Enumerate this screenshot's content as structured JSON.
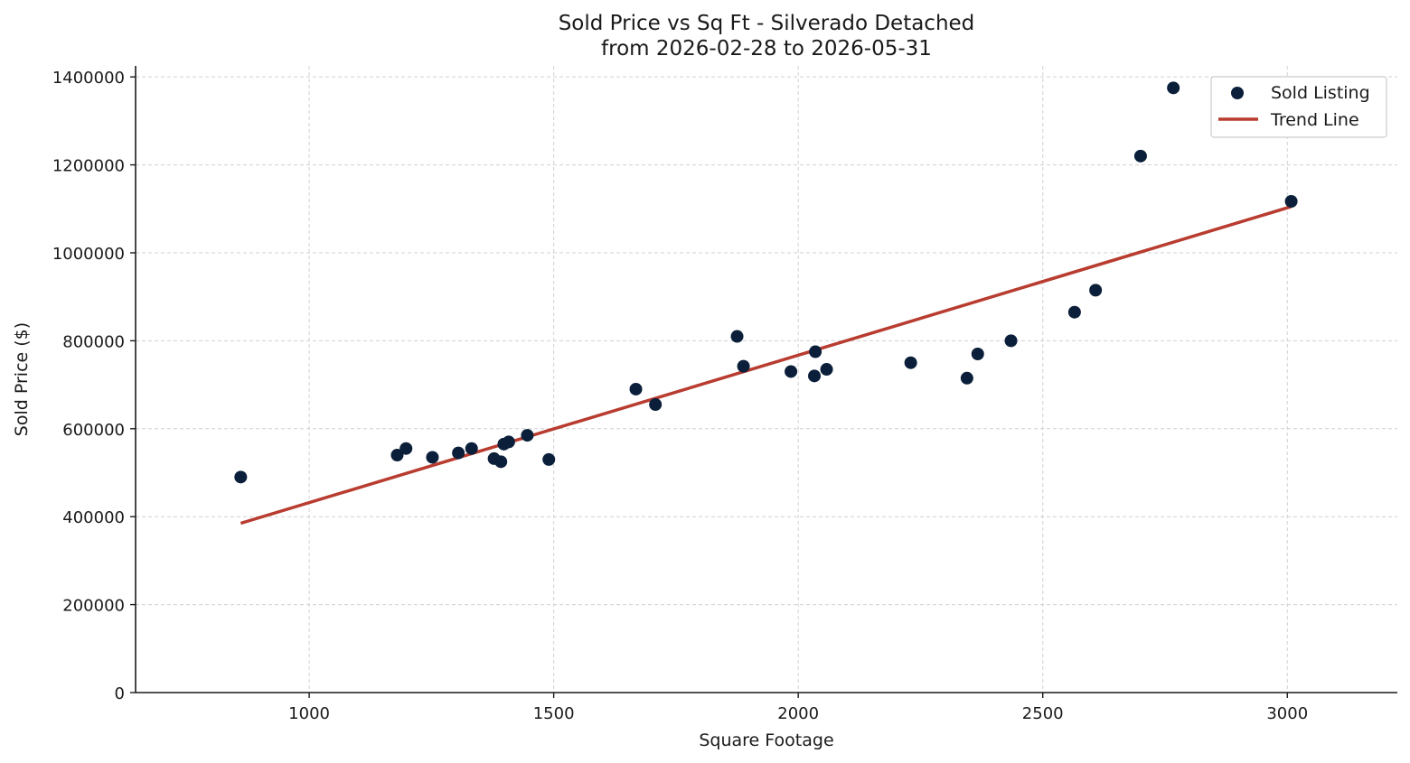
{
  "colors": {
    "points": "#0b1f3a",
    "trend": "#b83c30",
    "grid": "#d0d0d0",
    "axis": "#1a1a1a"
  },
  "chart_data": {
    "type": "scatter",
    "title": "Sold Price vs Sq Ft - Silverado Detached",
    "subtitle": "from 2026-02-28 to 2026-05-31",
    "xlabel": "Square Footage",
    "ylabel": "Sold Price ($)",
    "xlim": [
      645,
      3225
    ],
    "ylim": [
      0,
      1425000
    ],
    "xticks": [
      1000,
      1500,
      2000,
      2500,
      3000
    ],
    "yticks": [
      0,
      200000,
      400000,
      600000,
      800000,
      1000000,
      1200000,
      1400000
    ],
    "grid": true,
    "legend_position": "top-right",
    "legend": [
      "Sold Listing",
      "Trend Line"
    ],
    "series": [
      {
        "name": "Sold Listing",
        "type": "scatter",
        "points": [
          {
            "x": 860,
            "y": 490000
          },
          {
            "x": 1180,
            "y": 540000
          },
          {
            "x": 1198,
            "y": 555000
          },
          {
            "x": 1252,
            "y": 535000
          },
          {
            "x": 1305,
            "y": 545000
          },
          {
            "x": 1332,
            "y": 555000
          },
          {
            "x": 1378,
            "y": 532000
          },
          {
            "x": 1392,
            "y": 525000
          },
          {
            "x": 1398,
            "y": 565000
          },
          {
            "x": 1408,
            "y": 570000
          },
          {
            "x": 1446,
            "y": 585000
          },
          {
            "x": 1490,
            "y": 530000
          },
          {
            "x": 1668,
            "y": 690000
          },
          {
            "x": 1708,
            "y": 655000
          },
          {
            "x": 1875,
            "y": 810000
          },
          {
            "x": 1888,
            "y": 742000
          },
          {
            "x": 1985,
            "y": 730000
          },
          {
            "x": 2033,
            "y": 720000
          },
          {
            "x": 2035,
            "y": 775000
          },
          {
            "x": 2058,
            "y": 735000
          },
          {
            "x": 2230,
            "y": 750000
          },
          {
            "x": 2345,
            "y": 715000
          },
          {
            "x": 2367,
            "y": 770000
          },
          {
            "x": 2435,
            "y": 800000
          },
          {
            "x": 2565,
            "y": 865000
          },
          {
            "x": 2608,
            "y": 915000
          },
          {
            "x": 2700,
            "y": 1220000
          },
          {
            "x": 2767,
            "y": 1375000
          },
          {
            "x": 3008,
            "y": 1117000
          }
        ]
      },
      {
        "name": "Trend Line",
        "type": "line",
        "points": [
          {
            "x": 860,
            "y": 385000
          },
          {
            "x": 3008,
            "y": 1105000
          }
        ]
      }
    ]
  }
}
